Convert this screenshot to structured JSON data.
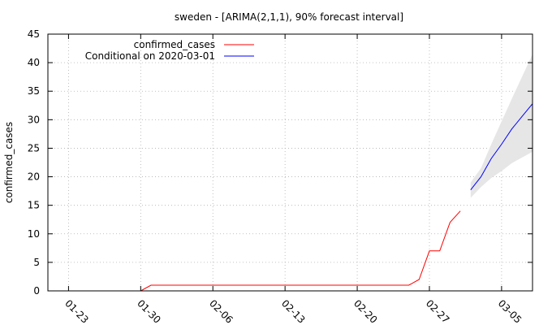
{
  "chart_data": {
    "type": "line",
    "title": "sweden -  [ARIMA(2,1,1), 90% forecast interval]",
    "xlabel": "",
    "ylabel": "confirmed_cases",
    "ylim": [
      0,
      45
    ],
    "yticks": [
      "0",
      "5",
      "10",
      "15",
      "20",
      "25",
      "30",
      "35",
      "40",
      "45"
    ],
    "xlim": [
      "2020-01-21",
      "2020-03-08"
    ],
    "xticks": [
      {
        "date": "2020-01-23",
        "label": "01-23"
      },
      {
        "date": "2020-01-30",
        "label": "01-30"
      },
      {
        "date": "2020-02-06",
        "label": "02-06"
      },
      {
        "date": "2020-02-13",
        "label": "02-13"
      },
      {
        "date": "2020-02-20",
        "label": "02-20"
      },
      {
        "date": "2020-02-27",
        "label": "02-27"
      },
      {
        "date": "2020-03-05",
        "label": "03-05"
      }
    ],
    "grid": true,
    "legend_position": "top-left",
    "series": [
      {
        "name": "confirmed_cases",
        "color": "#ff0000",
        "points": [
          [
            "2020-01-30",
            0
          ],
          [
            "2020-01-31",
            1
          ],
          [
            "2020-02-01",
            1
          ],
          [
            "2020-02-24",
            1
          ],
          [
            "2020-02-25",
            1
          ],
          [
            "2020-02-26",
            2
          ],
          [
            "2020-02-27",
            7
          ],
          [
            "2020-02-28",
            7
          ],
          [
            "2020-02-29",
            12
          ],
          [
            "2020-03-01",
            14
          ]
        ]
      },
      {
        "name": "Conditional on 2020-03-01",
        "color": "#0000ff",
        "points": [
          [
            "2020-03-02",
            17.7
          ],
          [
            "2020-03-03",
            20
          ],
          [
            "2020-03-04",
            23.2
          ],
          [
            "2020-03-05",
            25.7
          ],
          [
            "2020-03-06",
            28.4
          ],
          [
            "2020-03-07",
            30.6
          ],
          [
            "2020-03-08",
            32.8
          ]
        ]
      }
    ],
    "interval": {
      "color": "#e6e6e6",
      "upper": [
        [
          "2020-03-02",
          19
        ],
        [
          "2020-03-03",
          21.5
        ],
        [
          "2020-03-04",
          25.7
        ],
        [
          "2020-03-05",
          29.7
        ],
        [
          "2020-03-06",
          33.7
        ],
        [
          "2020-03-07",
          37.6
        ],
        [
          "2020-03-08",
          41.5
        ]
      ],
      "lower": [
        [
          "2020-03-02",
          16.3
        ],
        [
          "2020-03-03",
          18.2
        ],
        [
          "2020-03-04",
          19.8
        ],
        [
          "2020-03-05",
          21
        ],
        [
          "2020-03-06",
          22.4
        ],
        [
          "2020-03-07",
          23.4
        ],
        [
          "2020-03-08",
          24.4
        ]
      ]
    }
  }
}
